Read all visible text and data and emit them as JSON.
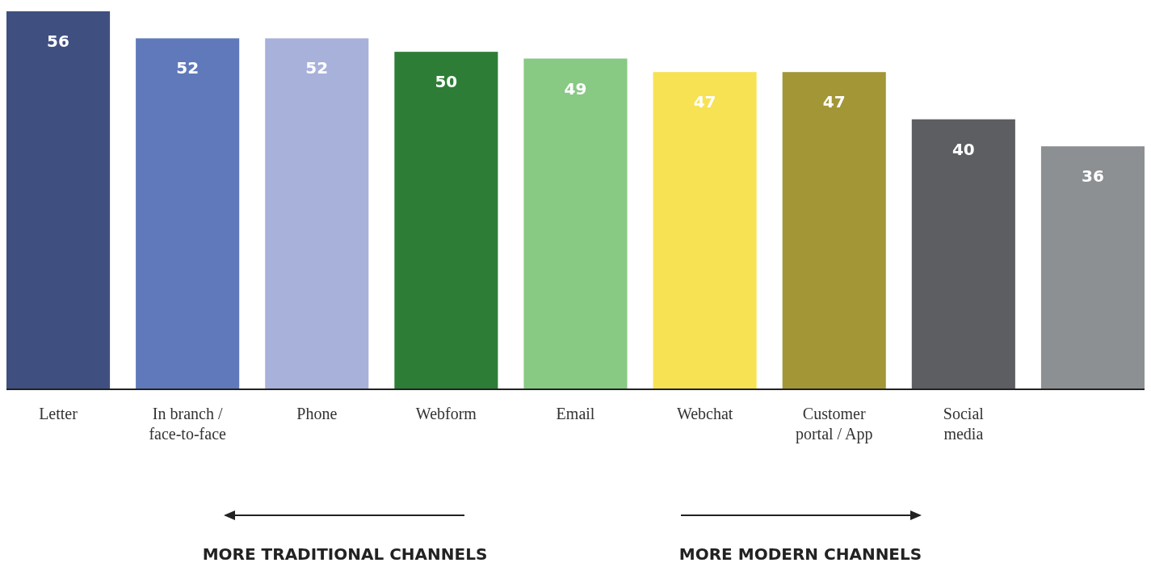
{
  "chart_data": {
    "type": "bar",
    "categories": [
      "Letter",
      "In branch / face-to-face",
      "Phone",
      "Webform",
      "Email",
      "Webchat",
      "Customer portal / App",
      "Social media",
      null
    ],
    "values": [
      56,
      52,
      52,
      50,
      49,
      47,
      47,
      40,
      36
    ],
    "colors": [
      "#3f5080",
      "#6079bb",
      "#a8b1da",
      "#2d7d37",
      "#88c984",
      "#f7e254",
      "#a39637",
      "#5d5e62",
      "#8c9093"
    ],
    "data_labels": true,
    "annotations": [
      "MORE TRADITIONAL CHANNELS",
      "MORE MODERN CHANNELS"
    ]
  }
}
